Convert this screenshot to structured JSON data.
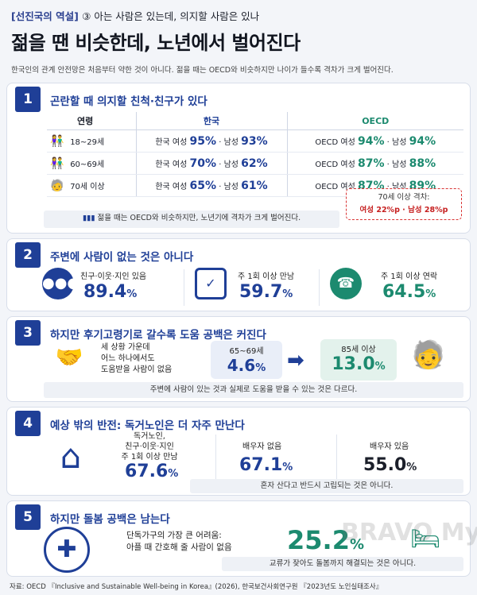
{
  "header": {
    "tag_label": "[선진국의 역설]",
    "tag_rest": "③ 아는 사람은 있는데, 의지할 사람은 있나",
    "title": "젊을 땐 비슷한데, 노년에서 벌어진다",
    "subtitle": "한국인의 관계 안전망은 처음부터 약한 것이 아니다. 젊을 때는 OECD와 비슷하지만 나이가 들수록 격차가 크게 벌어진다."
  },
  "s1": {
    "num": "1",
    "title": "곤란할 때 의지할 친척·친구가 있다",
    "col_age": "연령",
    "col_kr": "한국",
    "col_oecd": "OECD",
    "rows": [
      {
        "age": "18~29세",
        "kr_f": "95%",
        "kr_m": "93%",
        "oe_f": "94%",
        "oe_m": "94%"
      },
      {
        "age": "60~69세",
        "kr_f": "70%",
        "kr_m": "62%",
        "oe_f": "87%",
        "oe_m": "88%"
      },
      {
        "age": "70세 이상",
        "kr_f": "65%",
        "kr_m": "61%",
        "oe_f": "87%",
        "oe_m": "89%"
      }
    ],
    "kr_f_label": "한국 여성",
    "kr_m_label": "남성",
    "oe_f_label": "OECD 여성",
    "oe_m_label": "남성",
    "dot": "·",
    "gap_title": "70세 이상 격차:",
    "gap_text": "여성 22%p · 남성 28%p",
    "note": "젊을 때는 OECD와 비슷하지만, 노년기에 격차가 크게 벌어진다."
  },
  "s2": {
    "num": "2",
    "title": "주변에 사람이 없는 것은 아니다",
    "items": [
      {
        "label": "친구·이웃·지인 있음",
        "value": "89.4",
        "unit": "%"
      },
      {
        "label": "주 1회 이상 만남",
        "value": "59.7",
        "unit": "%"
      },
      {
        "label": "주 1회 이상 연락",
        "value": "64.5",
        "unit": "%"
      }
    ]
  },
  "s3": {
    "num": "3",
    "title": "하지만 후기고령기로 갈수록 도움 공백은 커진다",
    "desc1": "세 상황 가운데",
    "desc2": "어느 하나에서도",
    "desc3": "도움받을 사람이 없음",
    "a_label": "65~69세",
    "a_value": "4.6",
    "a_unit": "%",
    "b_label": "85세 이상",
    "b_value": "13.0",
    "b_unit": "%",
    "note": "주변에 사람이 있는 것과 실제로 도움을 받을 수 있는 것은 다르다."
  },
  "s4": {
    "num": "4",
    "title": "예상 밖의 반전: 독거노인은 더 자주 만난다",
    "l1": "독거노인,",
    "l2": "친구·이웃·지인",
    "l3": "주 1회 이상 만남",
    "v1": "67.6",
    "u1": "%",
    "b_label": "배우자 없음",
    "b_value": "67.1",
    "b_unit": "%",
    "c_label": "배우자 있음",
    "c_value": "55.0",
    "c_unit": "%",
    "note": "혼자 산다고 반드시 고립되는 것은 아니다."
  },
  "s5": {
    "num": "5",
    "title": "하지만 돌봄 공백은 남는다",
    "l1": "단독가구의 가장 큰 어려움:",
    "l2": "아플 때 간호해 줄 사람이 없음",
    "value": "25.2",
    "unit": "%",
    "note": "교류가 잦아도 돌봄까지 해결되는 것은 아니다."
  },
  "footer": "자료: OECD 『Inclusive and Sustainable Well-being in Korea』(2026), 한국보건사회연구원 『2023년도 노인실태조사』",
  "watermark": "BRAVO My Life",
  "colors": {
    "navy": "#1f3f97",
    "green": "#1c8a6f",
    "red": "#d93434"
  }
}
